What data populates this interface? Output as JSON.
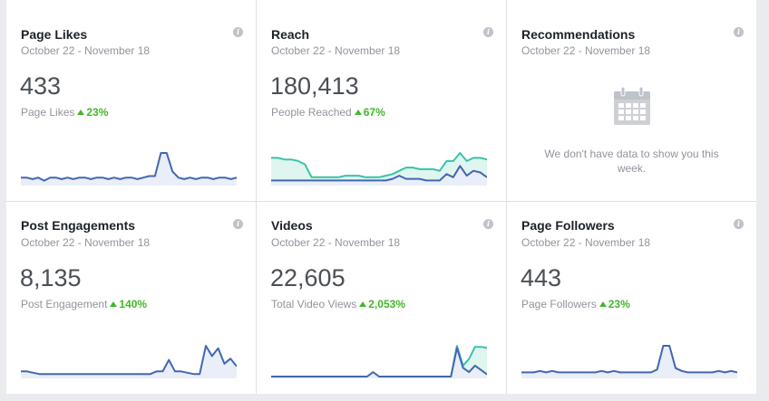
{
  "cards": [
    {
      "title": "Page Likes",
      "date": "October 22 - November 18",
      "value": "433",
      "metric": "Page Likes",
      "change": "23%"
    },
    {
      "title": "Reach",
      "date": "October 22 - November 18",
      "value": "180,413",
      "metric": "People Reached",
      "change": "67%"
    },
    {
      "title": "Recommendations",
      "date": "October 22 - November 18",
      "empty_text": "We don't have data to show you this week."
    },
    {
      "title": "Post Engagements",
      "date": "October 22 - November 18",
      "value": "8,135",
      "metric": "Post Engagement",
      "change": "140%"
    },
    {
      "title": "Videos",
      "date": "October 22 - November 18",
      "value": "22,605",
      "metric": "Total Video Views",
      "change": "2,053%"
    },
    {
      "title": "Page Followers",
      "date": "October 22 - November 18",
      "value": "443",
      "metric": "Page Followers",
      "change": "23%"
    }
  ],
  "info_icon": "i",
  "colors": {
    "blue_line": "#4267b2",
    "teal_line": "#3bc2a8",
    "blue_fill": "#e9eef8",
    "teal_fill": "#dff5ef",
    "up": "#42b72a"
  },
  "sparklines": {
    "page_likes": {
      "blue": [
        4,
        4,
        3,
        4,
        2,
        4,
        4,
        3,
        4,
        3,
        4,
        4,
        3,
        4,
        4,
        3,
        4,
        3,
        4,
        4,
        3,
        4,
        5,
        5,
        20,
        20,
        8,
        4,
        3,
        4,
        3,
        4,
        4,
        3,
        4,
        4,
        3,
        4
      ]
    },
    "reach": {
      "teal": [
        16,
        16,
        15,
        15,
        14,
        12,
        4,
        4,
        4,
        4,
        4,
        5,
        5,
        5,
        4,
        4,
        4,
        5,
        6,
        8,
        10,
        10,
        9,
        9,
        9,
        8,
        14,
        14,
        19,
        14,
        16,
        16,
        15
      ],
      "blue": [
        2,
        2,
        2,
        2,
        2,
        2,
        2,
        2,
        2,
        2,
        2,
        2,
        2,
        2,
        2,
        2,
        2,
        2,
        3,
        5,
        3,
        3,
        3,
        2,
        2,
        2,
        6,
        4,
        11,
        5,
        8,
        7,
        4
      ]
    },
    "post_engagements": {
      "blue": [
        4,
        4,
        3,
        2,
        2,
        2,
        2,
        2,
        2,
        2,
        2,
        2,
        2,
        2,
        2,
        2,
        2,
        2,
        2,
        2,
        2,
        2,
        4,
        4,
        13,
        4,
        4,
        3,
        2,
        2,
        24,
        16,
        22,
        10,
        14,
        8
      ]
    },
    "videos": {
      "teal": [
        0,
        0,
        0,
        0,
        0,
        0,
        0,
        0,
        0,
        0,
        0,
        0,
        0,
        0,
        0,
        0,
        0,
        0,
        0,
        0,
        0,
        0,
        0,
        0,
        0,
        0,
        0,
        0,
        0,
        0,
        0,
        28,
        10,
        16,
        27,
        27,
        26
      ],
      "blue": [
        0,
        0,
        0,
        0,
        0,
        0,
        0,
        0,
        0,
        0,
        0,
        0,
        0,
        0,
        0,
        0,
        0,
        4,
        0,
        0,
        0,
        0,
        0,
        0,
        0,
        0,
        0,
        0,
        0,
        0,
        0,
        26,
        8,
        4,
        10,
        6,
        2
      ]
    },
    "page_followers": {
      "blue": [
        3,
        3,
        3,
        4,
        3,
        4,
        3,
        3,
        3,
        3,
        3,
        3,
        3,
        4,
        3,
        4,
        3,
        3,
        3,
        3,
        3,
        3,
        5,
        22,
        22,
        6,
        4,
        3,
        3,
        3,
        3,
        3,
        4,
        3,
        4,
        3
      ]
    }
  }
}
